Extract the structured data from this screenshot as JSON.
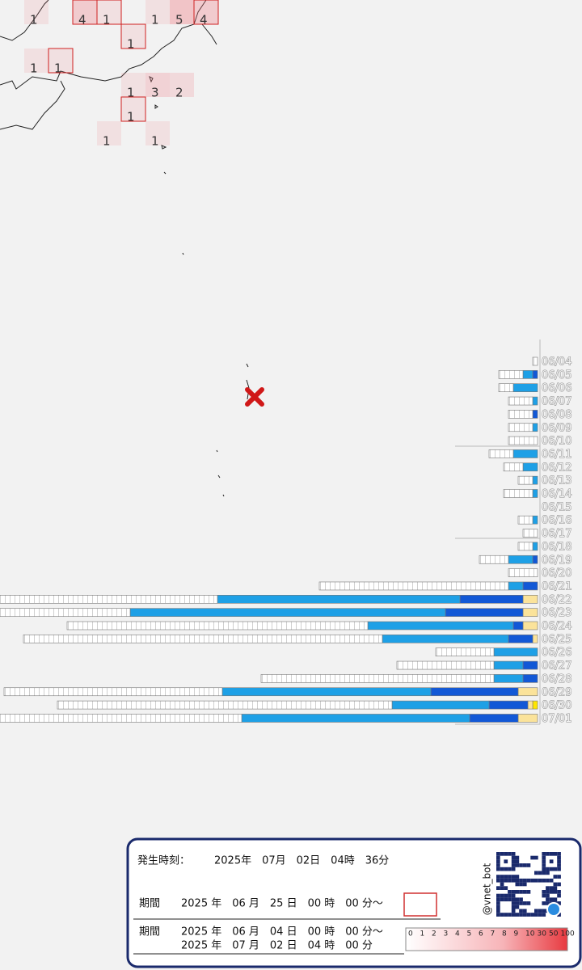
{
  "map": {
    "grid_counts": [
      1,
      4,
      1,
      1,
      5,
      4,
      1,
      1,
      1,
      1,
      3,
      2,
      1,
      1,
      1
    ]
  },
  "chart_data": {
    "type": "bar",
    "orientation": "horizontal",
    "stacked": true,
    "categories": [
      "06/04",
      "06/05",
      "06/06",
      "06/07",
      "06/08",
      "06/09",
      "06/10",
      "06/11",
      "06/12",
      "06/13",
      "06/14",
      "06/15",
      "06/16",
      "06/17",
      "06/18",
      "06/19",
      "06/20",
      "06/21",
      "06/22",
      "06/23",
      "06/24",
      "06/25",
      "06/26",
      "06/27",
      "06/28",
      "06/29",
      "06/30",
      "07/01"
    ],
    "series": [
      {
        "color": "#ffffff",
        "values": [
          1,
          5,
          3,
          5,
          5,
          5,
          6,
          5,
          4,
          3,
          6,
          0,
          3,
          3,
          3,
          6,
          6,
          39,
          45,
          27,
          62,
          74,
          12,
          20,
          48,
          45,
          69,
          50
        ]
      },
      {
        "color": "#1ea0e6",
        "values": [
          0,
          2,
          5,
          1,
          0,
          1,
          0,
          5,
          3,
          1,
          1,
          0,
          1,
          0,
          1,
          5,
          0,
          3,
          50,
          65,
          30,
          26,
          9,
          6,
          6,
          43,
          20,
          47
        ]
      },
      {
        "color": "#1258d6",
        "values": [
          0,
          1,
          0,
          0,
          1,
          0,
          0,
          0,
          0,
          0,
          0,
          0,
          0,
          0,
          0,
          1,
          0,
          3,
          13,
          16,
          2,
          5,
          0,
          3,
          3,
          18,
          8,
          10
        ]
      },
      {
        "color": "#fbe39a",
        "values": [
          0,
          0,
          0,
          0,
          0,
          0,
          0,
          0,
          0,
          0,
          0,
          0,
          0,
          0,
          0,
          0,
          0,
          0,
          3,
          3,
          3,
          1,
          0,
          0,
          0,
          4,
          1,
          4
        ]
      },
      {
        "color": "#ffe600",
        "values": [
          0,
          0,
          0,
          0,
          0,
          0,
          0,
          0,
          0,
          0,
          0,
          0,
          0,
          0,
          0,
          0,
          0,
          0,
          0,
          0,
          0,
          0,
          0,
          0,
          0,
          0,
          1,
          0
        ]
      }
    ]
  },
  "info": {
    "time_label": "発生時刻：",
    "time": "2025年　07月　02日　04時　36分",
    "period1_label": "期間",
    "period1": "2025 年　06 月　25 日　00 時　00 分～",
    "period2_label": "期間",
    "period2_start": "2025 年　06 月　04 日　00 時　00 分～",
    "period2_end": "2025 年　07 月　02 日　04 時　00 分",
    "handle": "@vnet_bot",
    "scale": [
      0,
      1,
      2,
      3,
      4,
      5,
      6,
      7,
      8,
      9,
      10,
      30,
      50,
      100
    ]
  }
}
